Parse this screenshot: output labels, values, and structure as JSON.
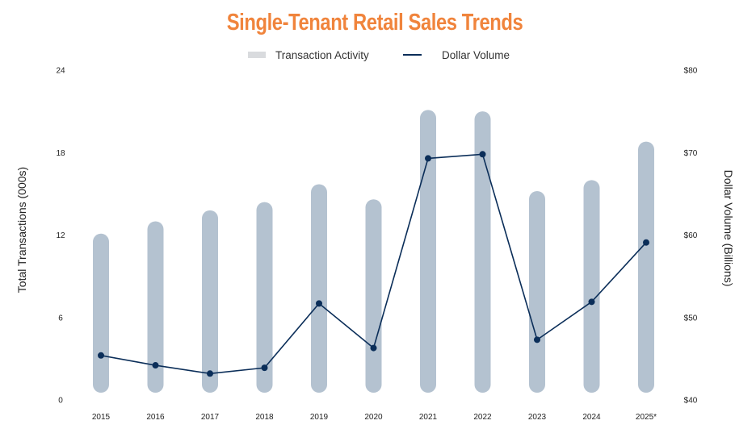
{
  "title": "Single-Tenant Retail Sales Trends",
  "colors": {
    "title": "#f0843c",
    "bar": "#b4c2d0",
    "legend_bar_swatch": "#d9dbde",
    "line": "#0b2e59",
    "text": "#222222"
  },
  "legend": [
    {
      "label": "Transaction Activity",
      "type": "bar"
    },
    {
      "label": "Dollar Volume",
      "type": "line"
    }
  ],
  "axes": {
    "left_title": "Total Transactions (000s)",
    "right_title": "Dollar Volume (Billions)",
    "left_ticks": [
      "0",
      "6",
      "12",
      "18",
      "24"
    ],
    "right_ticks": [
      "$40",
      "$50",
      "$60",
      "$70",
      "$80"
    ]
  },
  "chart_data": {
    "type": "bar+line",
    "title": "Single-Tenant Retail Sales Trends",
    "categories": [
      "2015",
      "2016",
      "2017",
      "2018",
      "2019",
      "2020",
      "2021",
      "2022",
      "2023",
      "2024",
      "2025*"
    ],
    "series": [
      {
        "name": "Transaction Activity",
        "type": "bar",
        "axis": "left",
        "values": [
          12.1,
          13.0,
          13.8,
          14.4,
          15.7,
          14.6,
          21.1,
          21.0,
          15.2,
          16.0,
          18.8
        ]
      },
      {
        "name": "Dollar Volume",
        "type": "line",
        "axis": "right",
        "values": [
          45.4,
          44.2,
          43.2,
          43.9,
          51.7,
          46.3,
          69.3,
          69.8,
          47.3,
          51.9,
          59.1
        ]
      }
    ],
    "xlabel": "",
    "ylabel": "Total Transactions (000s)",
    "ylabel_right": "Dollar Volume (Billions)",
    "ylim": [
      0,
      24
    ],
    "ylim_right": [
      40,
      80
    ],
    "yticks": [
      0,
      6,
      12,
      18,
      24
    ],
    "yticks_right": [
      40,
      50,
      60,
      70,
      80
    ],
    "grid": false,
    "legend_position": "top"
  }
}
